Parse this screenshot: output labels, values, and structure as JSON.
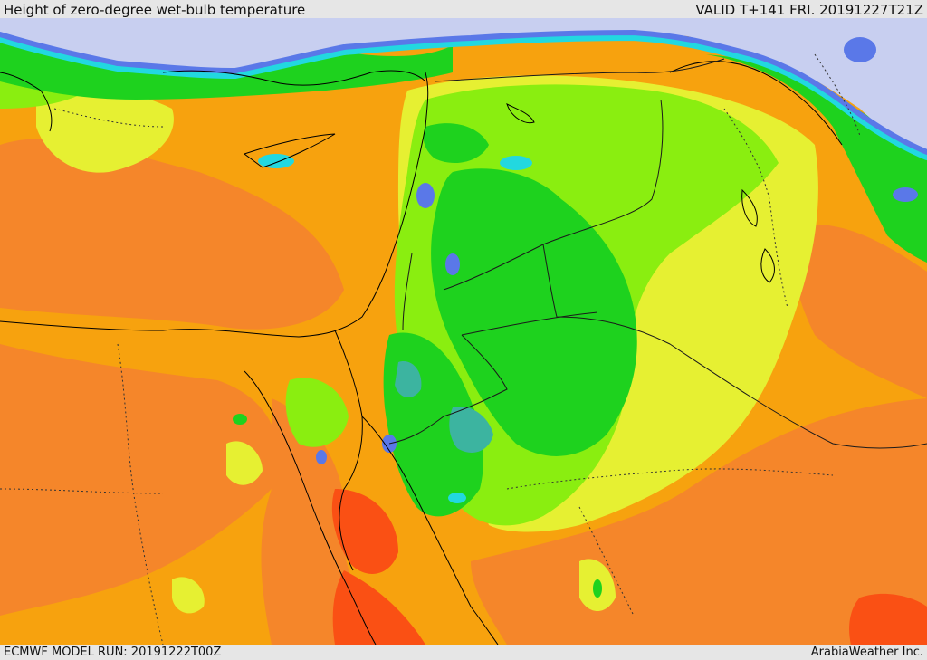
{
  "header": {
    "title": "Height of zero-degree wet-bulb temperature",
    "valid": "VALID T+141 FRI. 20191227T21Z"
  },
  "footer": {
    "model_run": "ECMWF MODEL RUN: 20191222T00Z",
    "credit": "ArabiaWeather Inc."
  },
  "map": {
    "field_colors": {
      "sea_low": "#c8cff0",
      "blue": "#5a78e8",
      "cyan": "#22d8e0",
      "teal": "#3cb4a0",
      "green": "#1ed21e",
      "lime": "#8aee10",
      "yellow": "#e6f032",
      "orange_light": "#f7a20e",
      "orange": "#f5862a",
      "red_orange": "#fa5014"
    },
    "line_colors": {
      "coastline": "#000000",
      "border": "#1a1a1a"
    }
  }
}
